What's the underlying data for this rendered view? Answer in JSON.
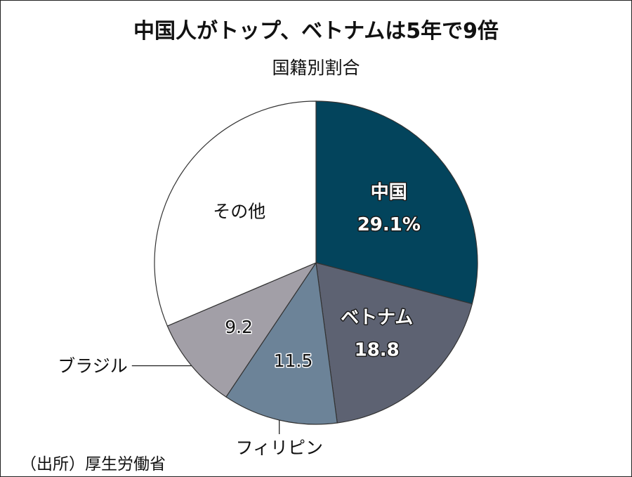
{
  "header": {
    "title": "中国人がトップ、ベトナムは5年で9倍",
    "subtitle": "国籍別割合"
  },
  "footer": {
    "source": "（出所）厚生労働省"
  },
  "chart_data": {
    "type": "pie",
    "title": "中国人がトップ、ベトナムは5年で9倍",
    "subtitle": "国籍別割合",
    "start": "12 o'clock, clockwise",
    "slices": [
      {
        "label": "中国",
        "value": 29.1,
        "display": "29.1%",
        "color": "#03445c",
        "text_color": "#ffffff",
        "label_placement": "inside"
      },
      {
        "label": "ベトナム",
        "value": 18.8,
        "display": "18.8",
        "color": "#5d6272",
        "text_color": "#ffffff",
        "label_placement": "inside"
      },
      {
        "label": "フィリピン",
        "value": 11.5,
        "display": "11.5",
        "color": "#6c8398",
        "text_color": "#111111",
        "label_placement": "outside-bottom"
      },
      {
        "label": "ブラジル",
        "value": 9.2,
        "display": "9.2",
        "color": "#a29fa7",
        "text_color": "#111111",
        "label_placement": "outside-left"
      },
      {
        "label": "その他",
        "value": 31.4,
        "display": "",
        "color": "#ffffff",
        "text_color": "#111111",
        "label_placement": "inside"
      }
    ]
  }
}
